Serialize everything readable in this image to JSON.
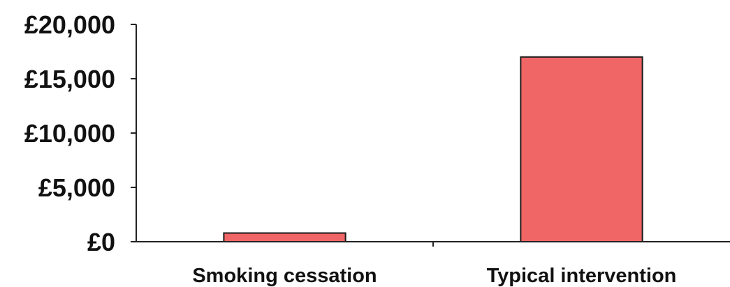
{
  "chart_data": {
    "type": "bar",
    "title": "",
    "xlabel": "",
    "ylabel": "",
    "categories": [
      "Smoking cessation",
      "Typical intervention"
    ],
    "values": [
      800,
      17000
    ],
    "ylim": [
      0,
      20000
    ],
    "yticks": [
      0,
      5000,
      10000,
      15000,
      20000
    ],
    "ytick_labels": [
      "£0",
      "£5,000",
      "£10,000",
      "£15,000",
      "£20,000"
    ],
    "bar_color": "#f06666",
    "bar_edge_color": "#1a1a1a",
    "grid": false,
    "legend": "none"
  }
}
